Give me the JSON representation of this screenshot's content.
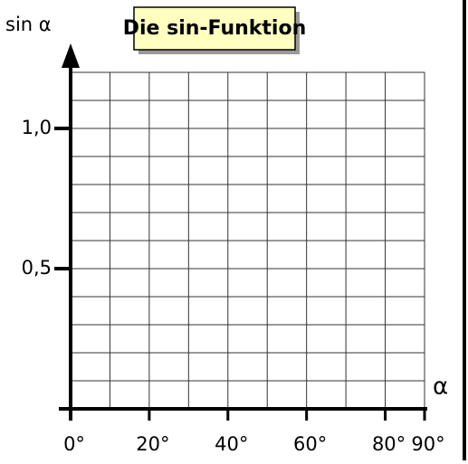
{
  "chart_data": {
    "type": "axes",
    "title": "Die sin-Funktion",
    "xlabel": "α",
    "ylabel": "sin α",
    "xlim": [
      0,
      90
    ],
    "ylim": [
      0,
      1.2
    ],
    "xticks": [
      {
        "value": 0,
        "label": "0°"
      },
      {
        "value": 20,
        "label": "20°"
      },
      {
        "value": 40,
        "label": "40°"
      },
      {
        "value": 60,
        "label": "60°"
      },
      {
        "value": 80,
        "label": "80°"
      },
      {
        "value": 90,
        "label": "90°"
      }
    ],
    "yticks": [
      {
        "value": 0.5,
        "label": "0,5"
      },
      {
        "value": 1,
        "label": "1,0"
      }
    ],
    "grid": true,
    "xgrid": [
      0,
      10,
      20,
      30,
      40,
      50,
      60,
      70,
      80,
      90
    ],
    "ygrid": [
      0,
      0.1,
      0.2,
      0.3,
      0.4,
      0.5,
      0.6,
      0.7,
      0.8,
      0.9,
      1,
      1.1,
      1.2
    ]
  }
}
